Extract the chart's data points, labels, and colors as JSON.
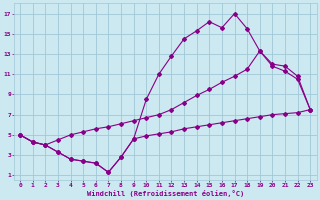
{
  "xlabel": "Windchill (Refroidissement éolien,°C)",
  "xlim": [
    -0.5,
    23.5
  ],
  "ylim": [
    0.5,
    18
  ],
  "xticks": [
    0,
    1,
    2,
    3,
    4,
    5,
    6,
    7,
    8,
    9,
    10,
    11,
    12,
    13,
    14,
    15,
    16,
    17,
    18,
    19,
    20,
    21,
    22,
    23
  ],
  "yticks": [
    1,
    3,
    5,
    7,
    9,
    11,
    13,
    15,
    17
  ],
  "background_color": "#cce8f0",
  "grid_color": "#a0c8d8",
  "line_color": "#880088",
  "curve_bottom_x": [
    0,
    1,
    2,
    3,
    4,
    5,
    6,
    7,
    8,
    9,
    10,
    11,
    12,
    13,
    14,
    15,
    16,
    17,
    18,
    19,
    20,
    21,
    22,
    23
  ],
  "curve_bottom_y": [
    5.0,
    4.3,
    4.0,
    3.3,
    2.6,
    2.4,
    2.2,
    1.3,
    2.8,
    4.6,
    4.9,
    5.1,
    5.3,
    5.6,
    5.8,
    6.0,
    6.2,
    6.4,
    6.6,
    6.8,
    7.0,
    7.1,
    7.2,
    7.5
  ],
  "curve_top_x": [
    0,
    1,
    2,
    3,
    4,
    5,
    6,
    7,
    8,
    9,
    10,
    11,
    12,
    13,
    14,
    15,
    16,
    17,
    18,
    19,
    20,
    21,
    22,
    23
  ],
  "curve_top_y": [
    5.0,
    4.3,
    4.0,
    3.3,
    2.6,
    2.4,
    2.2,
    1.3,
    2.8,
    4.6,
    8.5,
    11.0,
    12.8,
    14.5,
    15.3,
    16.2,
    15.6,
    17.0,
    15.5,
    13.3,
    11.8,
    11.3,
    10.5,
    7.5
  ],
  "curve_mid_x": [
    0,
    1,
    2,
    3,
    4,
    5,
    6,
    7,
    8,
    9,
    10,
    11,
    12,
    13,
    14,
    15,
    16,
    17,
    18,
    19,
    20,
    21,
    22,
    23
  ],
  "curve_mid_y": [
    5.0,
    4.3,
    4.0,
    4.5,
    5.0,
    5.3,
    5.6,
    5.8,
    6.1,
    6.4,
    6.7,
    7.0,
    7.5,
    8.2,
    8.9,
    9.5,
    10.2,
    10.8,
    11.5,
    13.3,
    12.0,
    11.8,
    10.8,
    7.5
  ]
}
